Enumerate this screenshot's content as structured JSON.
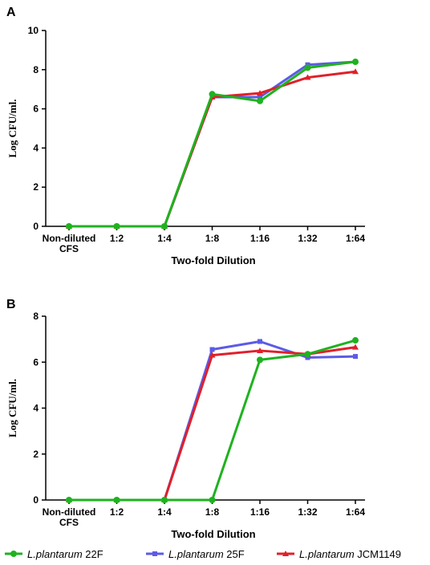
{
  "chart_data": [
    {
      "type": "line",
      "panel": "A",
      "categories": [
        "Non-diluted CFS",
        "1:2",
        "1:4",
        "1:8",
        "1:16",
        "1:32",
        "1:64"
      ],
      "category_lines": [
        [
          "Non-diluted",
          "CFS"
        ],
        [
          "1:2"
        ],
        [
          "1:4"
        ],
        [
          "1:8"
        ],
        [
          "1:16"
        ],
        [
          "1:32"
        ],
        [
          "1:64"
        ]
      ],
      "xlabel": "Two-fold Dilution",
      "ylabel": "Log CFU/ml.",
      "ylim": [
        0,
        10
      ],
      "yticks": [
        "0",
        "2",
        "4",
        "6",
        "8",
        "10"
      ],
      "series": [
        {
          "name": "22F",
          "color": "#1fb21f",
          "values": [
            0,
            0,
            0,
            6.75,
            6.4,
            8.1,
            8.4
          ]
        },
        {
          "name": "25F",
          "color": "#5b5be6",
          "values": [
            0,
            0,
            0,
            6.6,
            6.6,
            8.25,
            8.4
          ]
        },
        {
          "name": "JCM1149",
          "color": "#e0202a",
          "values": [
            0,
            0,
            0,
            6.6,
            6.8,
            7.6,
            7.9
          ]
        }
      ]
    },
    {
      "type": "line",
      "panel": "B",
      "categories": [
        "Non-diluted CFS",
        "1:2",
        "1:4",
        "1:8",
        "1:16",
        "1:32",
        "1:64"
      ],
      "category_lines": [
        [
          "Non-diluted",
          "CFS"
        ],
        [
          "1:2"
        ],
        [
          "1:4"
        ],
        [
          "1:8"
        ],
        [
          "1:16"
        ],
        [
          "1:32"
        ],
        [
          "1:64"
        ]
      ],
      "xlabel": "Two-fold Dilution",
      "ylabel": "Log CFU/ml.",
      "ylim": [
        0,
        8
      ],
      "yticks": [
        "0",
        "2",
        "4",
        "6",
        "8"
      ],
      "series": [
        {
          "name": "22F",
          "color": "#1fb21f",
          "values": [
            0,
            0,
            0,
            0,
            6.1,
            6.35,
            6.95
          ]
        },
        {
          "name": "25F",
          "color": "#5b5be6",
          "values": [
            0,
            0,
            0,
            6.55,
            6.9,
            6.2,
            6.25
          ]
        },
        {
          "name": "JCM1149",
          "color": "#e0202a",
          "values": [
            0,
            0,
            0,
            6.3,
            6.5,
            6.35,
            6.65
          ]
        }
      ]
    }
  ],
  "legend": [
    {
      "species": "L.plantarum",
      "strain": " 22F",
      "color": "#1fb21f",
      "marker": "circle"
    },
    {
      "species": "L.plantarum",
      "strain": " 25F",
      "color": "#5b5be6",
      "marker": "square"
    },
    {
      "species": "L.plantarum",
      "strain": " JCM1149",
      "color": "#e0202a",
      "marker": "triangle"
    }
  ]
}
